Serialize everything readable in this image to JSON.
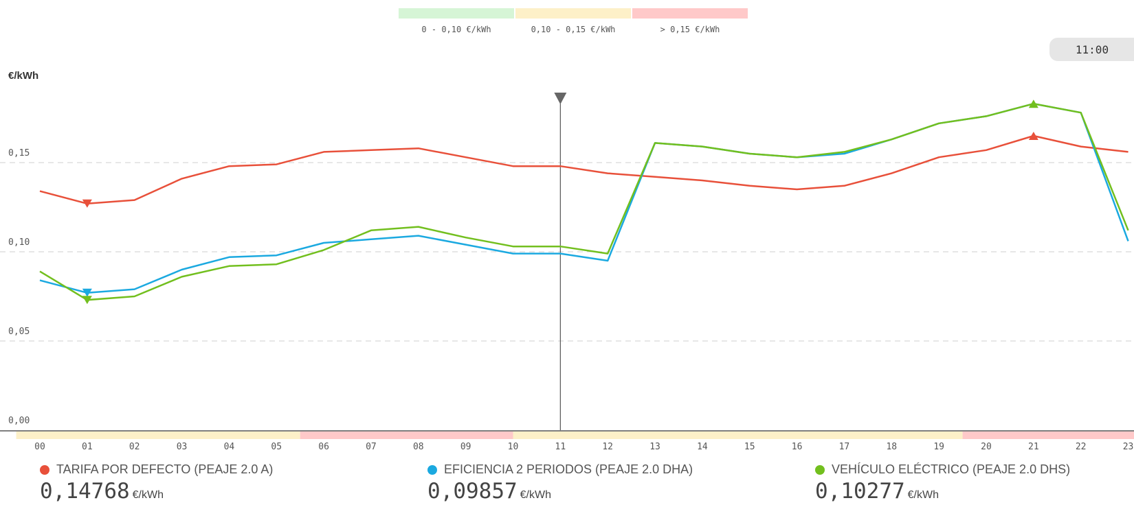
{
  "price_scale": {
    "ranges": [
      {
        "label": "0 - 0,10 €/kWh",
        "color": "#d6f5d6"
      },
      {
        "label": "0,10 - 0,15 €/kWh",
        "color": "#fdf0c8"
      },
      {
        "label": "> 0,15 €/kWh",
        "color": "#ffc9c9"
      }
    ]
  },
  "time_badge": "11:00",
  "chart_data": {
    "type": "line",
    "ylabel": "€/kWh",
    "ylim": [
      0,
      0.195
    ],
    "yticks": [
      {
        "value": 0.0,
        "label": "0,00"
      },
      {
        "value": 0.05,
        "label": "0,05"
      },
      {
        "value": 0.1,
        "label": "0,10"
      },
      {
        "value": 0.15,
        "label": "0,15"
      }
    ],
    "categories": [
      "00",
      "01",
      "02",
      "03",
      "04",
      "05",
      "06",
      "07",
      "08",
      "09",
      "10",
      "11",
      "12",
      "13",
      "14",
      "15",
      "16",
      "17",
      "18",
      "19",
      "20",
      "21",
      "22",
      "23"
    ],
    "selected_hour": "11",
    "grid": true,
    "period_bands": [
      {
        "from": 0,
        "to": 6,
        "color": "#fdf0c8"
      },
      {
        "from": 6,
        "to": 10.5,
        "color": "#ffc9c9"
      },
      {
        "from": 10.5,
        "to": 20,
        "color": "#fdf0c8"
      },
      {
        "from": 20,
        "to": 24,
        "color": "#ffc9c9"
      }
    ],
    "series": [
      {
        "name": "TARIFA POR DEFECTO (PEAJE 2.0 A)",
        "color": "#e8503a",
        "values": [
          0.134,
          0.127,
          0.129,
          0.141,
          0.148,
          0.149,
          0.156,
          0.157,
          0.158,
          0.153,
          0.148,
          0.148,
          0.144,
          0.142,
          0.14,
          0.137,
          0.135,
          0.137,
          0.144,
          0.153,
          0.157,
          0.165,
          0.159,
          0.156
        ],
        "min_index": 1,
        "max_index": 21,
        "current_value": "0,14768"
      },
      {
        "name": "EFICIENCIA 2 PERIODOS (PEAJE 2.0 DHA)",
        "color": "#1ba9e0",
        "values": [
          0.084,
          0.077,
          0.079,
          0.09,
          0.097,
          0.098,
          0.105,
          0.107,
          0.109,
          0.104,
          0.099,
          0.099,
          0.095,
          0.161,
          0.159,
          0.155,
          0.153,
          0.155,
          0.163,
          0.172,
          0.176,
          0.183,
          0.178,
          0.106
        ],
        "min_index": 1,
        "current_value": "0,09857"
      },
      {
        "name": "VEHÍCULO ELÉCTRICO (PEAJE 2.0 DHS)",
        "color": "#72bf1e",
        "values": [
          0.089,
          0.073,
          0.075,
          0.086,
          0.092,
          0.093,
          0.101,
          0.112,
          0.114,
          0.108,
          0.103,
          0.103,
          0.099,
          0.161,
          0.159,
          0.155,
          0.153,
          0.156,
          0.163,
          0.172,
          0.176,
          0.183,
          0.178,
          0.112
        ],
        "min_index": 1,
        "max_index": 21,
        "current_value": "0,10277"
      }
    ]
  },
  "series_unit": "€/kWh"
}
